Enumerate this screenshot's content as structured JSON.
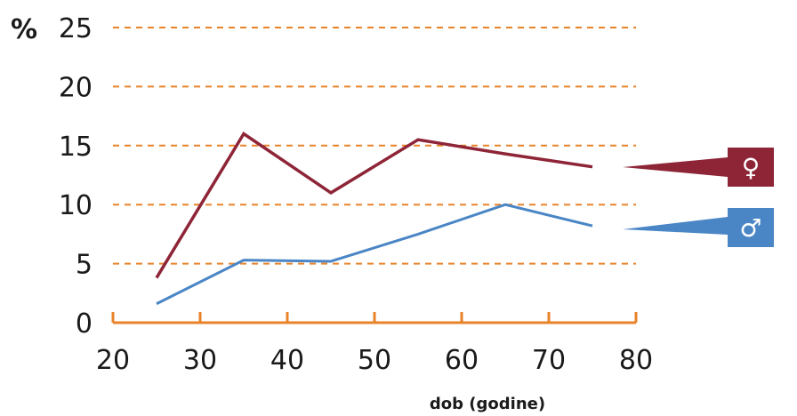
{
  "chart_data": {
    "type": "line",
    "x": [
      25,
      35,
      45,
      55,
      65,
      75
    ],
    "series": [
      {
        "name": "♀",
        "values": [
          3.8,
          16.0,
          11.0,
          15.5,
          14.3,
          13.2
        ],
        "color": "#8e2537"
      },
      {
        "name": "♂",
        "values": [
          1.6,
          5.3,
          5.2,
          7.5,
          10.0,
          8.2
        ],
        "color": "#4a86c5"
      }
    ],
    "ylabel": "%",
    "xlabel": "dob (godine)",
    "xlim": [
      20,
      80
    ],
    "ylim": [
      0,
      25
    ],
    "xticks": [
      "20",
      "30",
      "40",
      "50",
      "60",
      "70",
      "80"
    ],
    "yticks": [
      "0",
      "5",
      "10",
      "15",
      "20",
      "25"
    ],
    "grid": "horizontal dashed",
    "legend": "right",
    "colors": {
      "axis": "#e8832a",
      "grid": "#e8832a"
    }
  }
}
